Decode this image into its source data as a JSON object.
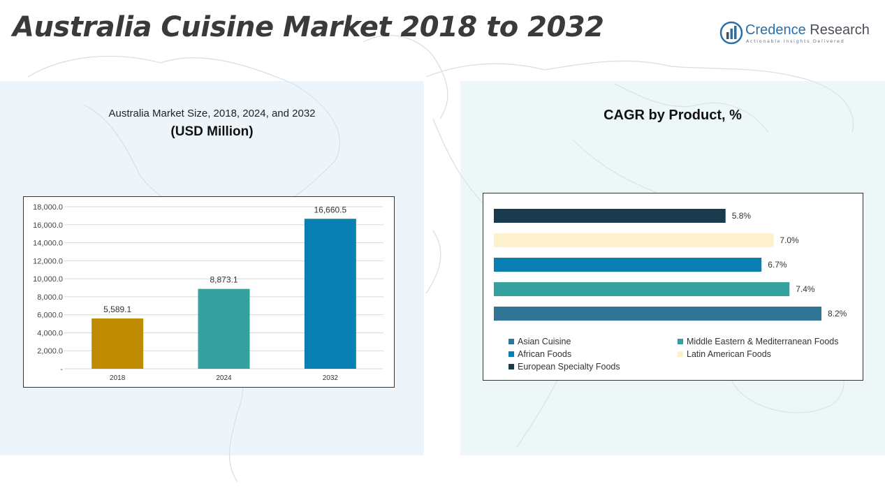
{
  "title": "Australia Cuisine Market 2018 to 2032",
  "logo": {
    "name_part1": "Credence",
    "name_part2": "Research",
    "tagline": "Actionable Insights Delivered",
    "icon": "bar-chart-circle-icon",
    "color": "#2a6fa8"
  },
  "market_panel": {
    "subtitle": "Australia Market Size, 2018, 2024, and 2032",
    "unit": "(USD Million)"
  },
  "cagr_panel": {
    "title": "CAGR by Product, %"
  },
  "chart_data": [
    {
      "type": "bar",
      "title": "Australia Market Size, 2018, 2024, and 2032",
      "ylabel": "(USD Million)",
      "categories": [
        "2018",
        "2024",
        "2032"
      ],
      "values": [
        5589.1,
        8873.1,
        16660.5
      ],
      "value_labels": [
        "5,589.1",
        "8,873.1",
        "16,660.5"
      ],
      "colors": [
        "#bf8b00",
        "#35a19f",
        "#0a7fb1"
      ],
      "ylim": [
        0,
        18000
      ],
      "yticks": [
        0,
        2000,
        4000,
        6000,
        8000,
        10000,
        12000,
        14000,
        16000,
        18000
      ],
      "ytick_labels": [
        "-",
        "2,000.0",
        "4,000.0",
        "6,000.0",
        "8,000.0",
        "10,000.0",
        "12,000.0",
        "14,000.0",
        "16,000.0",
        "18,000.0"
      ],
      "grid": true
    },
    {
      "type": "bar",
      "orientation": "horizontal",
      "title": "CAGR by Product, %",
      "series": [
        {
          "name": "European Specialty Foods",
          "value": 5.8,
          "label": "5.8%",
          "color": "#1a3b4e"
        },
        {
          "name": "Latin American Foods",
          "value": 7.0,
          "label": "7.0%",
          "color": "#fdf0cd"
        },
        {
          "name": "African Foods",
          "value": 6.7,
          "label": "6.7%",
          "color": "#0a7fb1"
        },
        {
          "name": "Middle Eastern & Mediterranean Foods",
          "value": 7.4,
          "label": "7.4%",
          "color": "#35a19f"
        },
        {
          "name": "Asian Cuisine",
          "value": 8.2,
          "label": "8.2%",
          "color": "#2f7495"
        }
      ],
      "legend": [
        {
          "name": "Asian Cuisine",
          "color": "#2f7495"
        },
        {
          "name": "Middle Eastern & Mediterranean Foods",
          "color": "#35a19f"
        },
        {
          "name": "African Foods",
          "color": "#0a7fb1"
        },
        {
          "name": "Latin American Foods",
          "color": "#fdf0cd"
        },
        {
          "name": "European Specialty Foods",
          "color": "#1a3b4e"
        }
      ],
      "legend_position": "bottom",
      "grid": false
    }
  ]
}
